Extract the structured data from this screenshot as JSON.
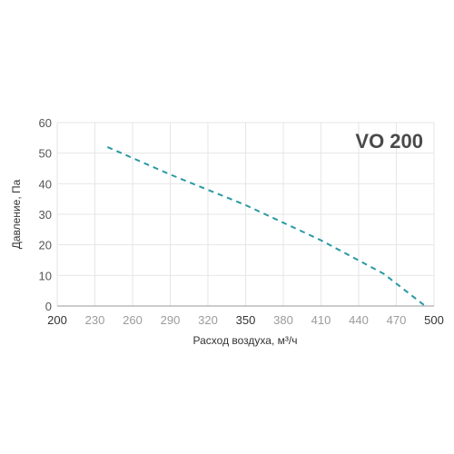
{
  "chart_data": {
    "type": "line",
    "title": "VO 200",
    "xlabel": "Расход воздуха, м³/ч",
    "ylabel": "Давление, Па",
    "xlim": [
      200,
      500
    ],
    "ylim": [
      0,
      60
    ],
    "x_ticks": [
      "200",
      "230",
      "260",
      "290",
      "320",
      "350",
      "380",
      "410",
      "440",
      "470",
      "500"
    ],
    "y_ticks": [
      "0",
      "10",
      "20",
      "30",
      "40",
      "50",
      "60"
    ],
    "grid": true,
    "legend": "none",
    "series": [
      {
        "color": "#2a9aa3",
        "style": "dashed",
        "points": [
          {
            "x": 240,
            "y": 52
          },
          {
            "x": 290,
            "y": 43
          },
          {
            "x": 350,
            "y": 33
          },
          {
            "x": 410,
            "y": 21.5
          },
          {
            "x": 460,
            "y": 10.5
          },
          {
            "x": 493,
            "y": 0
          }
        ]
      }
    ]
  }
}
